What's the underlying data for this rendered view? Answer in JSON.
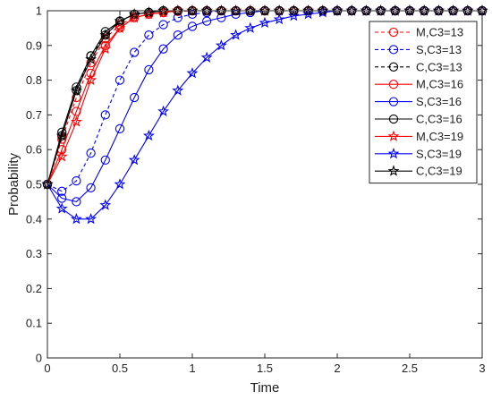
{
  "chart_data": {
    "type": "line",
    "xlabel": "Time",
    "ylabel": "Probability",
    "xlim": [
      0,
      3
    ],
    "ylim": [
      0,
      1
    ],
    "xticks": [
      0,
      0.5,
      1,
      1.5,
      2,
      2.5,
      3
    ],
    "xtick_labels": [
      "0",
      "0.5",
      "1",
      "1.5",
      "2",
      "2.5",
      "3"
    ],
    "yticks": [
      0,
      0.1,
      0.2,
      0.3,
      0.4,
      0.5,
      0.6,
      0.7,
      0.8,
      0.9,
      1
    ],
    "ytick_labels": [
      "0",
      "0.1",
      "0.2",
      "0.3",
      "0.4",
      "0.5",
      "0.6",
      "0.7",
      "0.8",
      "0.9",
      "1"
    ],
    "grid": false,
    "legend_position": "top-right",
    "x": [
      0,
      0.1,
      0.2,
      0.3,
      0.4,
      0.5,
      0.6,
      0.7,
      0.8,
      0.9,
      1.0,
      1.1,
      1.2,
      1.3,
      1.4,
      1.5,
      1.6,
      1.7,
      1.8,
      1.9,
      2.0,
      2.1,
      2.2,
      2.3,
      2.4,
      2.5,
      2.6,
      2.7,
      2.8,
      2.9,
      3.0
    ],
    "series": [
      {
        "name": "M,C3=13",
        "color": "#ff0000",
        "dash": "dashed",
        "marker": "circle",
        "values": [
          0.5,
          0.63,
          0.75,
          0.85,
          0.92,
          0.96,
          0.98,
          0.99,
          0.995,
          0.998,
          1,
          1,
          1,
          1,
          1,
          1,
          1,
          1,
          1,
          1,
          1,
          1,
          1,
          1,
          1,
          1,
          1,
          1,
          1,
          1,
          1
        ]
      },
      {
        "name": "S,C3=13",
        "color": "#0000ff",
        "dash": "dashed",
        "marker": "circle",
        "values": [
          0.5,
          0.48,
          0.51,
          0.59,
          0.7,
          0.8,
          0.88,
          0.93,
          0.96,
          0.98,
          0.99,
          0.995,
          1,
          1,
          1,
          1,
          1,
          1,
          1,
          1,
          1,
          1,
          1,
          1,
          1,
          1,
          1,
          1,
          1,
          1,
          1
        ]
      },
      {
        "name": "C,C3=13",
        "color": "#000000",
        "dash": "dashed",
        "marker": "circle",
        "values": [
          0.5,
          0.64,
          0.77,
          0.87,
          0.93,
          0.97,
          0.99,
          0.995,
          1,
          1,
          1,
          1,
          1,
          1,
          1,
          1,
          1,
          1,
          1,
          1,
          1,
          1,
          1,
          1,
          1,
          1,
          1,
          1,
          1,
          1,
          1
        ]
      },
      {
        "name": "M,C3=16",
        "color": "#ff0000",
        "dash": "solid",
        "marker": "circle",
        "values": [
          0.5,
          0.6,
          0.71,
          0.82,
          0.9,
          0.95,
          0.98,
          0.99,
          0.995,
          1,
          1,
          1,
          1,
          1,
          1,
          1,
          1,
          1,
          1,
          1,
          1,
          1,
          1,
          1,
          1,
          1,
          1,
          1,
          1,
          1,
          1
        ]
      },
      {
        "name": "S,C3=16",
        "color": "#0000ff",
        "dash": "solid",
        "marker": "circle",
        "values": [
          0.5,
          0.46,
          0.45,
          0.49,
          0.57,
          0.66,
          0.75,
          0.83,
          0.89,
          0.93,
          0.955,
          0.97,
          0.98,
          0.99,
          0.995,
          1,
          1,
          1,
          1,
          1,
          1,
          1,
          1,
          1,
          1,
          1,
          1,
          1,
          1,
          1,
          1
        ]
      },
      {
        "name": "C,C3=16",
        "color": "#000000",
        "dash": "solid",
        "marker": "circle",
        "values": [
          0.5,
          0.65,
          0.78,
          0.87,
          0.94,
          0.97,
          0.99,
          0.995,
          1,
          1,
          1,
          1,
          1,
          1,
          1,
          1,
          1,
          1,
          1,
          1,
          1,
          1,
          1,
          1,
          1,
          1,
          1,
          1,
          1,
          1,
          1
        ]
      },
      {
        "name": "M,C3=19",
        "color": "#ff0000",
        "dash": "solid",
        "marker": "star",
        "values": [
          0.5,
          0.58,
          0.68,
          0.8,
          0.89,
          0.95,
          0.98,
          0.99,
          0.995,
          1,
          1,
          1,
          1,
          1,
          1,
          1,
          1,
          1,
          1,
          1,
          1,
          1,
          1,
          1,
          1,
          1,
          1,
          1,
          1,
          1,
          1
        ]
      },
      {
        "name": "S,C3=19",
        "color": "#0000ff",
        "dash": "solid",
        "marker": "star",
        "values": [
          0.5,
          0.43,
          0.4,
          0.4,
          0.44,
          0.5,
          0.57,
          0.64,
          0.71,
          0.77,
          0.82,
          0.865,
          0.9,
          0.93,
          0.95,
          0.965,
          0.975,
          0.985,
          0.99,
          0.995,
          1,
          1,
          1,
          1,
          1,
          1,
          1,
          1,
          1,
          1,
          1
        ]
      },
      {
        "name": "C,C3=19",
        "color": "#000000",
        "dash": "solid",
        "marker": "star",
        "values": [
          0.5,
          0.64,
          0.77,
          0.86,
          0.93,
          0.97,
          0.99,
          0.995,
          1,
          1,
          1,
          1,
          1,
          1,
          1,
          1,
          1,
          1,
          1,
          1,
          1,
          1,
          1,
          1,
          1,
          1,
          1,
          1,
          1,
          1,
          1
        ]
      }
    ]
  }
}
